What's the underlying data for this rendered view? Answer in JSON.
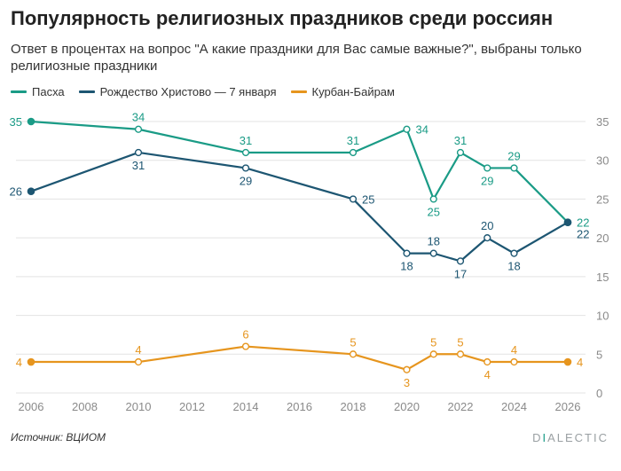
{
  "title": "Популярность религиозных праздников среди россиян",
  "subtitle": "Ответ в процентах на вопрос \"А какие праздники для Вас самые важные?\", выбраны только религиозные праздники",
  "source": "Источник: ВЦИОМ",
  "brand": {
    "first": "D",
    "accent": "I",
    "rest": "ALECTIC"
  },
  "colors": {
    "pascha": "#1a9b86",
    "christmas": "#1d5672",
    "kurban": "#e6951e",
    "grid": "#e3e3e3",
    "axis_text": "#8a8a8a"
  },
  "chart_data": {
    "type": "line",
    "title": "Популярность религиозных праздников среди россиян",
    "x_ticks": [
      2006,
      2008,
      2010,
      2012,
      2014,
      2016,
      2018,
      2020,
      2022,
      2024,
      2026
    ],
    "y_ticks": [
      0,
      5,
      10,
      15,
      20,
      25,
      30,
      35
    ],
    "xlim": [
      2006,
      2026
    ],
    "ylim": [
      0,
      35
    ],
    "grid": true,
    "legend_position": "top-left",
    "series": [
      {
        "key": "pascha",
        "name": "Пасха",
        "x": [
          2006,
          2010,
          2014,
          2018,
          2020,
          2021,
          2022,
          2023,
          2024,
          2026
        ],
        "values": [
          35,
          34,
          31,
          31,
          34,
          25,
          31,
          29,
          29,
          22
        ],
        "label_pos": [
          "left",
          "above",
          "above",
          "above",
          "right",
          "below",
          "above",
          "below",
          "above",
          "right"
        ]
      },
      {
        "key": "christmas",
        "name": "Рождество Христово — 7 января",
        "x": [
          2006,
          2010,
          2014,
          2018,
          2020,
          2021,
          2022,
          2023,
          2024,
          2026
        ],
        "values": [
          26,
          31,
          29,
          25,
          18,
          18,
          17,
          20,
          18,
          22
        ],
        "label_pos": [
          "left",
          "below",
          "below",
          "right",
          "below",
          "above",
          "below",
          "above",
          "below",
          "below-right"
        ]
      },
      {
        "key": "kurban",
        "name": "Курбан-Байрам",
        "x": [
          2006,
          2010,
          2014,
          2018,
          2020,
          2021,
          2022,
          2023,
          2024,
          2026
        ],
        "values": [
          4,
          4,
          6,
          5,
          3,
          5,
          5,
          4,
          4,
          4
        ],
        "label_pos": [
          "left",
          "above",
          "above",
          "above",
          "below",
          "above",
          "above",
          "below",
          "above",
          "right"
        ]
      }
    ]
  }
}
